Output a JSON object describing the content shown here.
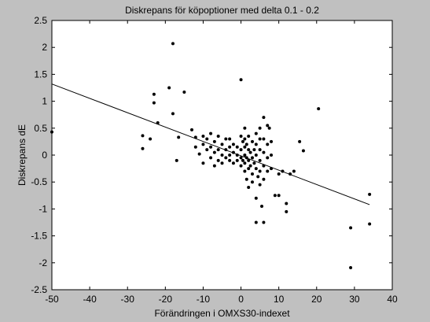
{
  "chart_data": {
    "type": "scatter",
    "title": "Diskrepans för köpoptioner med delta 0.1 - 0.2",
    "xlabel": "Förändringen i OMXS30-indexet",
    "ylabel": "Diskrepans dE",
    "xlim": [
      -50,
      40
    ],
    "ylim": [
      -2.5,
      2.5
    ],
    "xticks": [
      "-50",
      "-40",
      "-30",
      "-20",
      "-10",
      "0",
      "10",
      "20",
      "30",
      "40"
    ],
    "yticks": [
      "2.5",
      "2",
      "1.5",
      "1",
      "0.5",
      "0",
      "-0.5",
      "-1",
      "-1.5",
      "-2",
      "-2.5"
    ],
    "grid": false,
    "colors": {
      "figure_background": "#c0c0c0",
      "plot_background": "#ffffff",
      "markers": "#000000",
      "line": "#000000"
    },
    "fit_line": {
      "x": [
        -50,
        34
      ],
      "y": [
        1.32,
        -0.92
      ]
    },
    "series": [
      {
        "points": [
          [
            -50,
            0.43
          ],
          [
            -26,
            0.36
          ],
          [
            -26,
            0.12
          ],
          [
            -24,
            0.3
          ],
          [
            -23,
            1.13
          ],
          [
            -23,
            0.97
          ],
          [
            -22,
            0.6
          ],
          [
            -19,
            1.25
          ],
          [
            -18,
            2.07
          ],
          [
            -18,
            0.77
          ],
          [
            -17,
            -0.1
          ],
          [
            -16.5,
            0.33
          ],
          [
            -15,
            1.17
          ],
          [
            -13,
            0.47
          ],
          [
            -12,
            0.33
          ],
          [
            -12,
            0.15
          ],
          [
            -11,
            0.02
          ],
          [
            -10,
            0.35
          ],
          [
            -10,
            0.2
          ],
          [
            -10,
            -0.15
          ],
          [
            -9,
            0.3
          ],
          [
            -9,
            0.1
          ],
          [
            -8,
            0.4
          ],
          [
            -8,
            0.15
          ],
          [
            -8,
            -0.05
          ],
          [
            -7,
            0.25
          ],
          [
            -7,
            0.05
          ],
          [
            -7,
            -0.2
          ],
          [
            -6,
            0.35
          ],
          [
            -6,
            0.1
          ],
          [
            -6,
            -0.1
          ],
          [
            -5,
            0.2
          ],
          [
            -5,
            0.0
          ],
          [
            -5,
            -0.15
          ],
          [
            -4,
            0.3
          ],
          [
            -4,
            0.1
          ],
          [
            -4,
            -0.05
          ],
          [
            -3,
            0.3
          ],
          [
            -3,
            0.15
          ],
          [
            -3,
            0.0
          ],
          [
            -3,
            -0.1
          ],
          [
            -2,
            0.2
          ],
          [
            -2,
            0.05
          ],
          [
            -2,
            -0.15
          ],
          [
            -1,
            0.15
          ],
          [
            -1,
            0.0
          ],
          [
            -1,
            -0.1
          ],
          [
            0,
            1.4
          ],
          [
            0,
            0.35
          ],
          [
            0,
            0.1
          ],
          [
            0,
            -0.05
          ],
          [
            0,
            -0.2
          ],
          [
            0.5,
            0.25
          ],
          [
            0.5,
            -0.1
          ],
          [
            1,
            0.5
          ],
          [
            1,
            0.3
          ],
          [
            1,
            0.15
          ],
          [
            1,
            0.0
          ],
          [
            1,
            -0.15
          ],
          [
            1,
            -0.3
          ],
          [
            1.5,
            0.2
          ],
          [
            1.5,
            -0.05
          ],
          [
            1.5,
            -0.45
          ],
          [
            2,
            0.35
          ],
          [
            2,
            0.1
          ],
          [
            2,
            -0.1
          ],
          [
            2,
            -0.25
          ],
          [
            2,
            -0.6
          ],
          [
            2.5,
            0.05
          ],
          [
            2.5,
            -0.2
          ],
          [
            3,
            0.25
          ],
          [
            3,
            -0.05
          ],
          [
            3,
            -0.35
          ],
          [
            3,
            -0.5
          ],
          [
            3.5,
            0.1
          ],
          [
            3.5,
            -0.15
          ],
          [
            4,
            0.4
          ],
          [
            4,
            0.2
          ],
          [
            4,
            0.0
          ],
          [
            4,
            -0.25
          ],
          [
            4,
            -0.8
          ],
          [
            4,
            -1.25
          ],
          [
            4.5,
            -0.4
          ],
          [
            5,
            0.5
          ],
          [
            5,
            0.3
          ],
          [
            5,
            0.1
          ],
          [
            5,
            -0.1
          ],
          [
            5,
            -0.3
          ],
          [
            5,
            -0.55
          ],
          [
            5.5,
            -0.95
          ],
          [
            6,
            0.7
          ],
          [
            6,
            0.3
          ],
          [
            6,
            0.05
          ],
          [
            6,
            -0.2
          ],
          [
            6,
            -0.45
          ],
          [
            6,
            -1.25
          ],
          [
            7,
            0.55
          ],
          [
            7,
            0.2
          ],
          [
            7,
            -0.05
          ],
          [
            7,
            -0.3
          ],
          [
            7.5,
            0.5
          ],
          [
            8,
            0.25
          ],
          [
            8,
            0.0
          ],
          [
            8,
            -0.25
          ],
          [
            9,
            -0.75
          ],
          [
            10,
            -0.35
          ],
          [
            10,
            -0.75
          ],
          [
            11,
            -0.3
          ],
          [
            12,
            -1.05
          ],
          [
            12,
            -0.9
          ],
          [
            13,
            -0.35
          ],
          [
            14,
            -0.3
          ],
          [
            15.5,
            0.25
          ],
          [
            16.5,
            0.08
          ],
          [
            20.5,
            0.86
          ],
          [
            29,
            -1.35
          ],
          [
            29,
            -2.09
          ],
          [
            34,
            -0.73
          ],
          [
            34,
            -1.28
          ]
        ]
      }
    ]
  }
}
